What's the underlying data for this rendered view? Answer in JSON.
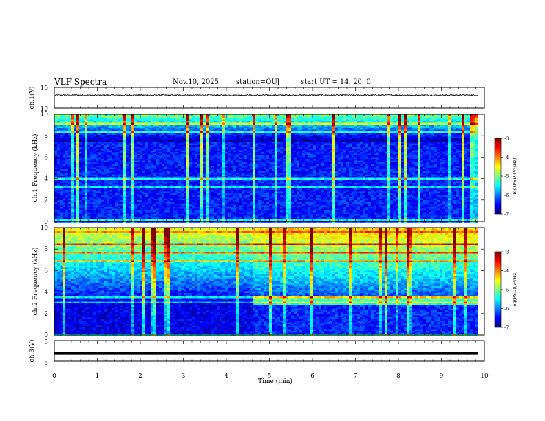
{
  "header": {
    "title": "VLF Spectra",
    "date": "Nov.10, 2025",
    "station": "station=OUJ",
    "start": "start  UT  =   14: 20: 0"
  },
  "chart_data": [
    {
      "type": "line",
      "name": "ch1-waveform",
      "ylabel": "ch.1(V)",
      "ylim": [
        -10,
        10
      ],
      "ytick_labels": [
        "10",
        "-10"
      ],
      "baseline": 2.5,
      "noise_amplitude": 0.6,
      "xlim": [
        0,
        10
      ],
      "x_end": 9.85
    },
    {
      "type": "heatmap",
      "name": "ch1-spectrogram",
      "ylabel": "ch.1  Frequency  (kHz)",
      "ylim": [
        0,
        10
      ],
      "yticks": [
        "0",
        "2",
        "4",
        "6",
        "8",
        "10"
      ],
      "xlim": [
        0,
        10
      ],
      "x_end": 9.85,
      "colorbar": {
        "label": "log(PSD)(V²/Hz)",
        "range": [
          -7,
          -3
        ],
        "ticks": [
          "-3",
          "-4",
          "-5",
          "-6",
          "-7"
        ]
      },
      "upper_band_min_khz": 7.5
    },
    {
      "type": "heatmap",
      "name": "ch2-spectrogram",
      "ylabel": "ch.2  Frequency  (kHz)",
      "ylim": [
        0,
        10
      ],
      "yticks": [
        "0",
        "2",
        "4",
        "6",
        "8",
        "10"
      ],
      "xlim": [
        0,
        10
      ],
      "x_end": 9.85,
      "colorbar": {
        "label": "log(PSD)(V²/Hz)",
        "range": [
          -7,
          -3
        ],
        "ticks": [
          "-3",
          "-4",
          "-5",
          "-6",
          "-7"
        ]
      },
      "band_feature": {
        "x_start_min": 4.6,
        "freq_khz": 3.2
      }
    },
    {
      "type": "line",
      "name": "ch3-waveform",
      "ylabel": "ch.3(V)",
      "ylim": [
        -5,
        5
      ],
      "ytick_labels": [
        "5",
        "-5"
      ],
      "baseline": -1.2,
      "xlim": [
        0,
        10
      ],
      "x_end": 9.85,
      "xlabel": "Time  (min)",
      "xticks": [
        "0",
        "1",
        "2",
        "3",
        "4",
        "5",
        "6",
        "7",
        "8",
        "9",
        "10"
      ]
    }
  ],
  "colors": {
    "colormap": [
      "#00007f",
      "#0000ff",
      "#007fff",
      "#00ffff",
      "#7fff7f",
      "#ffff00",
      "#ff7f00",
      "#ff0000",
      "#7f0000"
    ]
  }
}
